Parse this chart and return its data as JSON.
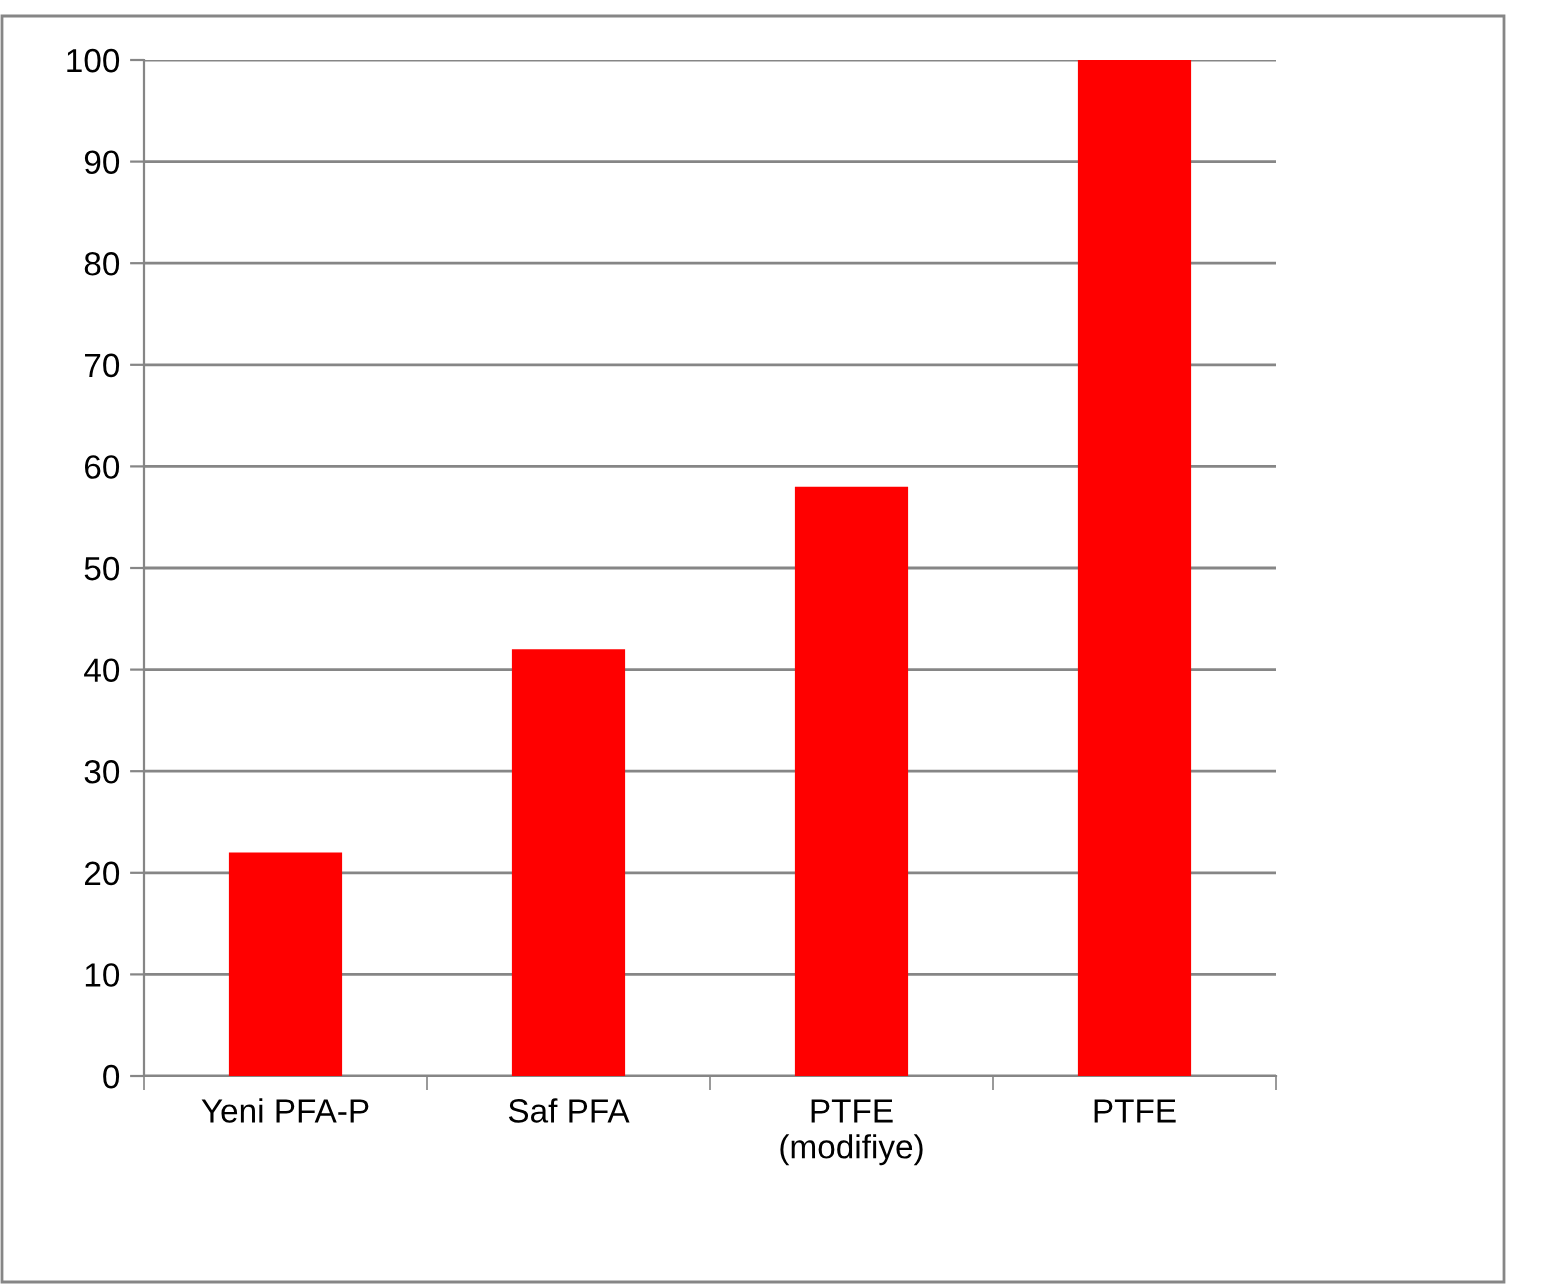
{
  "chart_data": {
    "type": "bar",
    "categories": [
      "Yeni PFA-P",
      "Saf PFA",
      "PTFE\n(modifiye)",
      "PTFE"
    ],
    "values": [
      22,
      42,
      58,
      100
    ],
    "color": "#ff0000",
    "ylim": [
      0,
      100
    ],
    "yticks": [
      0,
      10,
      20,
      30,
      40,
      50,
      60,
      70,
      80,
      90,
      100
    ],
    "grid": "y",
    "legend": false
  }
}
